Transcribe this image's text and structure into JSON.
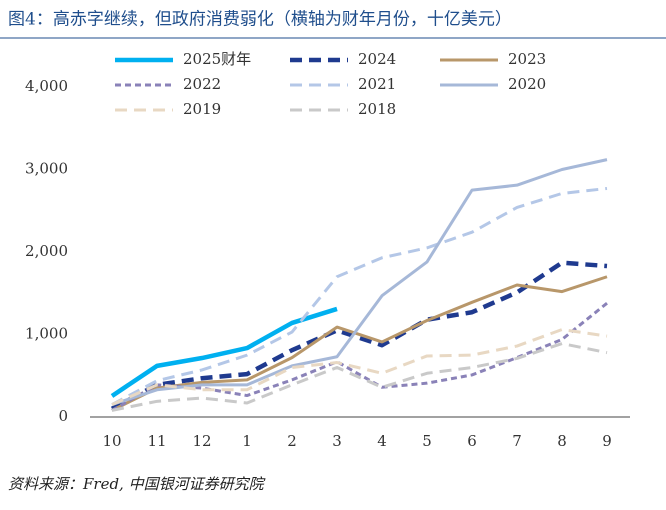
{
  "chart_data": {
    "type": "line",
    "title": "图4：高赤字继续，但政府消费弱化（横轴为财年月份，十亿美元）",
    "source": "资料来源：Fred, 中国银河证券研究院",
    "categories": [
      "10",
      "11",
      "12",
      "1",
      "2",
      "3",
      "4",
      "5",
      "6",
      "7",
      "8",
      "9"
    ],
    "ylim": [
      0,
      4000
    ],
    "yticks": [
      0,
      {
        "value": 1000,
        "label": "1,000"
      },
      {
        "value": 2000,
        "label": "2,000"
      },
      {
        "value": 3000,
        "label": "3,000"
      },
      {
        "value": 4000,
        "label": "4,000"
      }
    ],
    "grid": false,
    "series": [
      {
        "name": "2025财年",
        "color": "#00b0f0",
        "dash": "solid",
        "values": [
          255,
          620,
          715,
          835,
          1140,
          1310,
          null,
          null,
          null,
          null,
          null,
          null
        ]
      },
      {
        "name": "2024",
        "color": "#1f3a8f",
        "dash": "dashed",
        "values": [
          100,
          390,
          470,
          520,
          810,
          1050,
          870,
          1180,
          1270,
          1510,
          1870,
          1830
        ]
      },
      {
        "name": "2023",
        "color": "#b8976a",
        "dash": "solid",
        "values": [
          80,
          350,
          420,
          450,
          720,
          1090,
          910,
          1170,
          1390,
          1600,
          1520,
          1700
        ]
      },
      {
        "name": "2022",
        "color": "#8a82b8",
        "dash": "dotted",
        "values": [
          80,
          390,
          350,
          260,
          450,
          670,
          360,
          410,
          510,
          720,
          940,
          1380
        ]
      },
      {
        "name": "2021",
        "color": "#b4c7e7",
        "dash": "dashed",
        "values": [
          150,
          440,
          570,
          750,
          1030,
          1700,
          1930,
          2050,
          2240,
          2540,
          2710,
          2770
        ]
      },
      {
        "name": "2020",
        "color": "#a6b8d8",
        "dash": "solid",
        "values": [
          150,
          330,
          390,
          390,
          620,
          730,
          1470,
          1880,
          2750,
          2810,
          3000,
          3120
        ]
      },
      {
        "name": "2019",
        "color": "#e8d8c3",
        "dash": "dashed",
        "values": [
          150,
          390,
          330,
          330,
          600,
          660,
          530,
          740,
          750,
          860,
          1060,
          980
        ]
      },
      {
        "name": "2018",
        "color": "#c9c9c9",
        "dash": "dashed",
        "values": [
          80,
          190,
          230,
          170,
          390,
          600,
          360,
          530,
          600,
          710,
          890,
          780
        ]
      }
    ]
  }
}
